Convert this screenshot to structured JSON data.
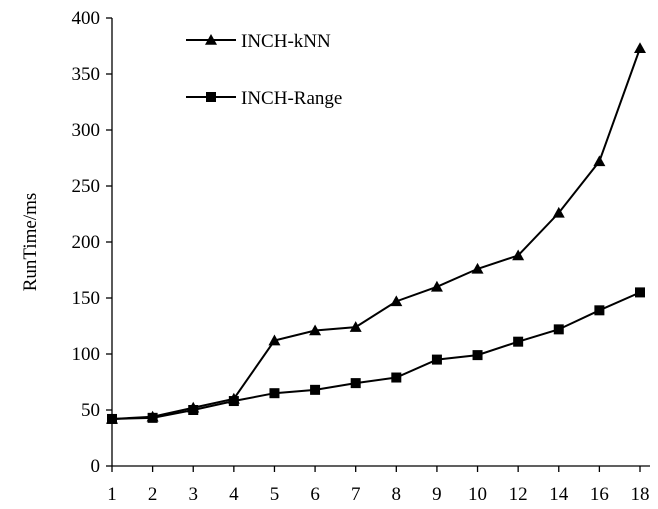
{
  "chart_data": {
    "type": "line",
    "title": "",
    "xlabel": "",
    "ylabel": "RunTime/ms",
    "categories": [
      "1",
      "2",
      "3",
      "4",
      "5",
      "6",
      "7",
      "8",
      "9",
      "10",
      "12",
      "14",
      "16",
      "18"
    ],
    "ylim": [
      0,
      400
    ],
    "yticks": [
      0,
      50,
      100,
      150,
      200,
      250,
      300,
      350,
      400
    ],
    "grid": false,
    "legend_position": "top-left",
    "series": [
      {
        "name": "INCH-kNN",
        "marker": "triangle",
        "color": "#000000",
        "values": [
          42,
          44,
          52,
          60,
          112,
          121,
          124,
          147,
          160,
          176,
          188,
          226,
          272,
          373
        ]
      },
      {
        "name": "INCH-Range",
        "marker": "square",
        "color": "#000000",
        "values": [
          42,
          43,
          50,
          58,
          65,
          68,
          74,
          79,
          95,
          99,
          111,
          122,
          139,
          155
        ]
      }
    ]
  }
}
